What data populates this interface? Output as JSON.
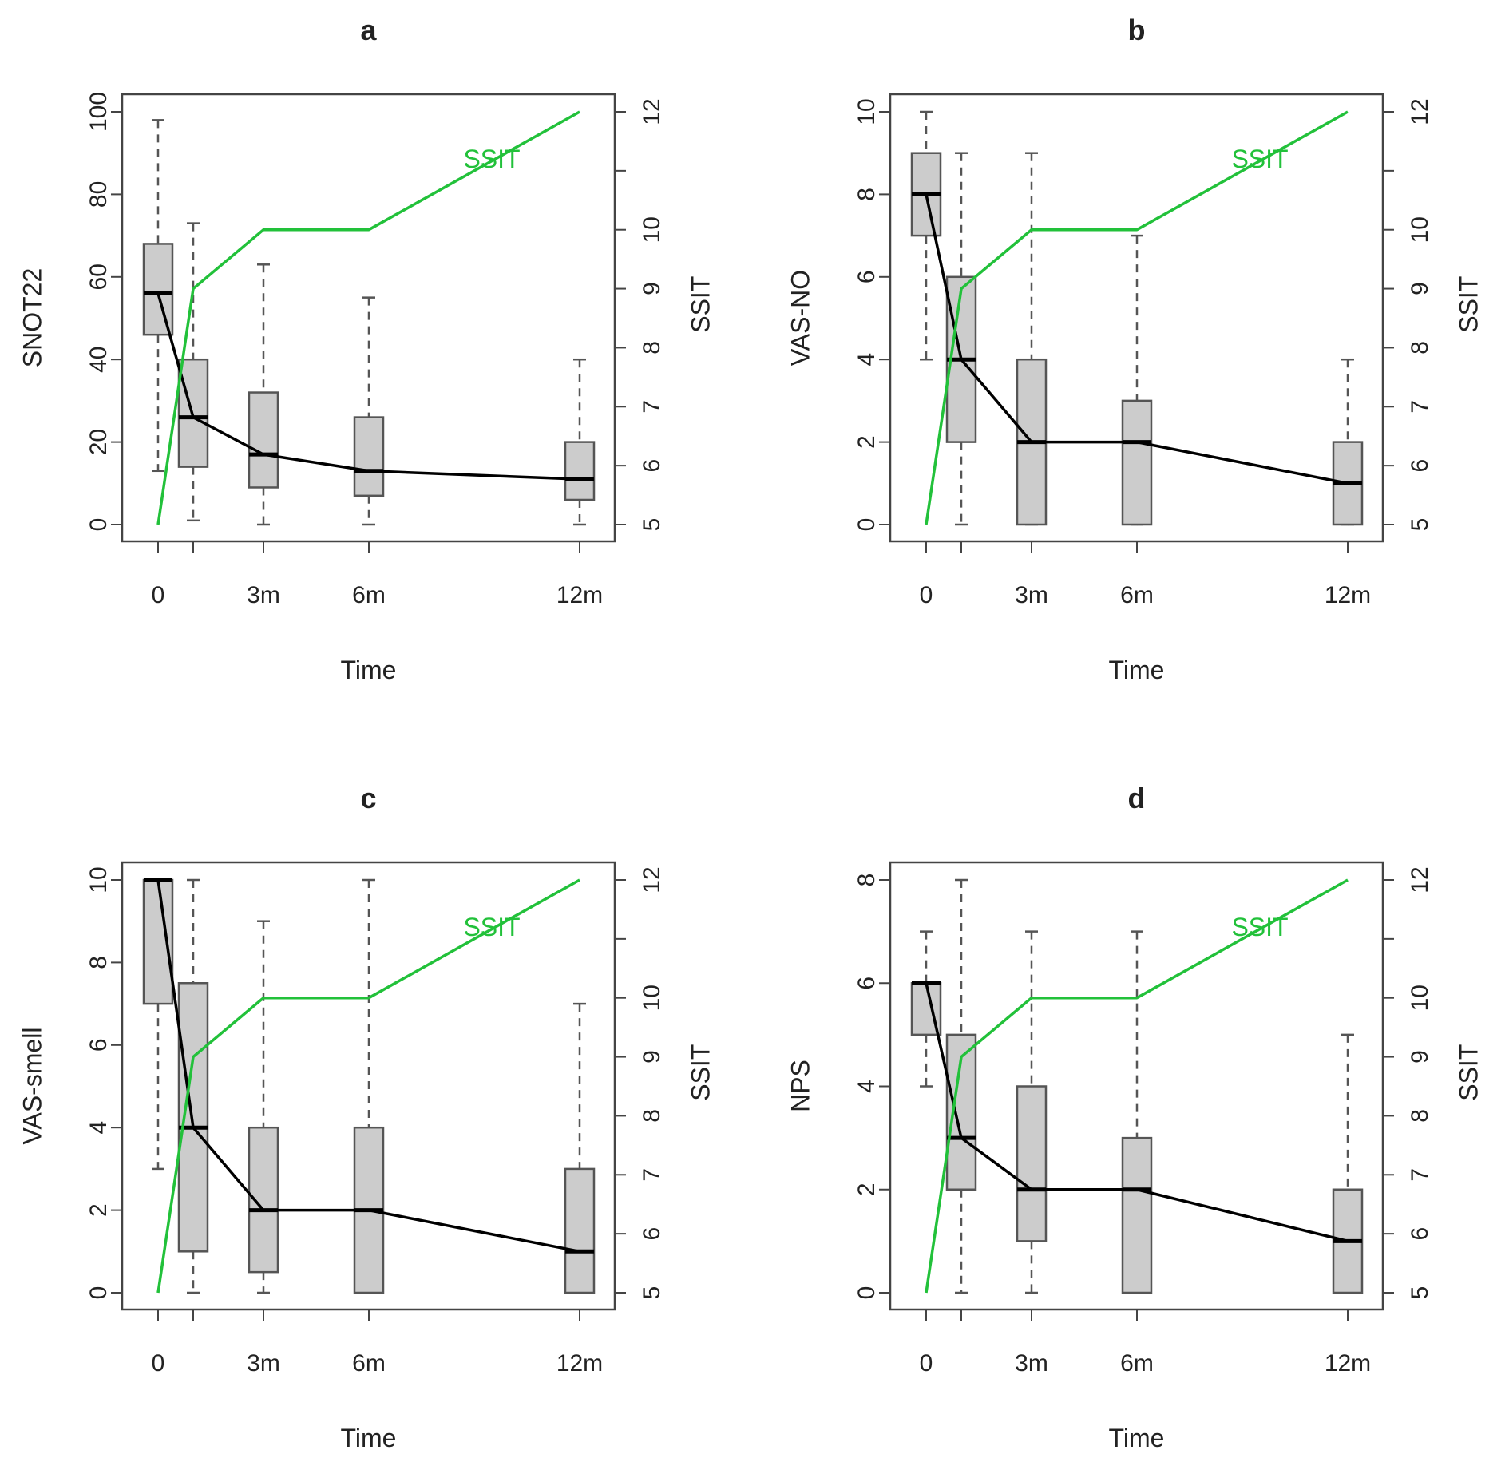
{
  "figure": {
    "colors": {
      "box_fill": "#cccccc",
      "box_stroke": "#555555",
      "whisker": "#555555",
      "median_line": "#000000",
      "ssit_line": "#22c13a",
      "frame": "#444444",
      "text": "#222222"
    }
  },
  "chart_data": [
    {
      "type": "boxplot",
      "title": "a",
      "xlabel": "Time",
      "ylabel": "SNOT22",
      "y2label": "SSIT",
      "series_label": "SSIT",
      "ylim": [
        0,
        100
      ],
      "yticks": [
        0,
        20,
        40,
        60,
        80,
        100
      ],
      "y2lim": [
        5,
        12
      ],
      "y2ticks": [
        5,
        6,
        7,
        8,
        9,
        10,
        11,
        12
      ],
      "y2ticklabels": [
        "5",
        "6",
        "7",
        "8",
        "9",
        "10",
        "",
        "12"
      ],
      "x": [
        0,
        1,
        3,
        6,
        12
      ],
      "xticklabels": [
        "0",
        "",
        "3m",
        "6m",
        "12m"
      ],
      "boxes": [
        {
          "x": 0,
          "min": 13,
          "q1": 46,
          "median": 56,
          "q3": 68,
          "max": 98
        },
        {
          "x": 1,
          "min": 1,
          "q1": 14,
          "median": 26,
          "q3": 40,
          "max": 73
        },
        {
          "x": 3,
          "min": 0,
          "q1": 9,
          "median": 17,
          "q3": 32,
          "max": 63
        },
        {
          "x": 6,
          "min": 0,
          "q1": 7,
          "median": 13,
          "q3": 26,
          "max": 55
        },
        {
          "x": 12,
          "min": 0,
          "q1": 6,
          "median": 11,
          "q3": 20,
          "max": 40
        }
      ],
      "median_line": [
        56,
        26,
        17,
        13,
        11
      ],
      "ssit": [
        5,
        9,
        10,
        10,
        12
      ]
    },
    {
      "type": "boxplot",
      "title": "b",
      "xlabel": "Time",
      "ylabel": "VAS-NO",
      "y2label": "SSIT",
      "series_label": "SSIT",
      "ylim": [
        0,
        10
      ],
      "yticks": [
        0,
        2,
        4,
        6,
        8,
        10
      ],
      "y2lim": [
        5,
        12
      ],
      "y2ticks": [
        5,
        6,
        7,
        8,
        9,
        10,
        11,
        12
      ],
      "y2ticklabels": [
        "5",
        "6",
        "7",
        "8",
        "9",
        "10",
        "",
        "12"
      ],
      "x": [
        0,
        1,
        3,
        6,
        12
      ],
      "xticklabels": [
        "0",
        "",
        "3m",
        "6m",
        "12m"
      ],
      "boxes": [
        {
          "x": 0,
          "min": 4,
          "q1": 7,
          "median": 8,
          "q3": 9,
          "max": 10
        },
        {
          "x": 1,
          "min": 0,
          "q1": 2,
          "median": 4,
          "q3": 6,
          "max": 9
        },
        {
          "x": 3,
          "min": 0,
          "q1": 0,
          "median": 2,
          "q3": 4,
          "max": 9
        },
        {
          "x": 6,
          "min": 0,
          "q1": 0,
          "median": 2,
          "q3": 3,
          "max": 7
        },
        {
          "x": 12,
          "min": 0,
          "q1": 0,
          "median": 1,
          "q3": 2,
          "max": 4
        }
      ],
      "median_line": [
        8,
        4,
        2,
        2,
        1
      ],
      "ssit": [
        5,
        9,
        10,
        10,
        12
      ]
    },
    {
      "type": "boxplot",
      "title": "c",
      "xlabel": "Time",
      "ylabel": "VAS-smell",
      "y2label": "SSIT",
      "series_label": "SSIT",
      "ylim": [
        0,
        10
      ],
      "yticks": [
        0,
        2,
        4,
        6,
        8,
        10
      ],
      "y2lim": [
        5,
        12
      ],
      "y2ticks": [
        5,
        6,
        7,
        8,
        9,
        10,
        11,
        12
      ],
      "y2ticklabels": [
        "5",
        "6",
        "7",
        "8",
        "9",
        "10",
        "",
        "12"
      ],
      "x": [
        0,
        1,
        3,
        6,
        12
      ],
      "xticklabels": [
        "0",
        "",
        "3m",
        "6m",
        "12m"
      ],
      "boxes": [
        {
          "x": 0,
          "min": 3,
          "q1": 7,
          "median": 10,
          "q3": 10,
          "max": 10
        },
        {
          "x": 1,
          "min": 0,
          "q1": 1,
          "median": 4,
          "q3": 7.5,
          "max": 10
        },
        {
          "x": 3,
          "min": 0,
          "q1": 0.5,
          "median": 2,
          "q3": 4,
          "max": 9
        },
        {
          "x": 6,
          "min": 0,
          "q1": 0,
          "median": 2,
          "q3": 4,
          "max": 10
        },
        {
          "x": 12,
          "min": 0,
          "q1": 0,
          "median": 1,
          "q3": 3,
          "max": 7
        }
      ],
      "median_line": [
        10,
        4,
        2,
        2,
        1
      ],
      "ssit": [
        5,
        9,
        10,
        10,
        12
      ]
    },
    {
      "type": "boxplot",
      "title": "d",
      "xlabel": "Time",
      "ylabel": "NPS",
      "y2label": "SSIT",
      "series_label": "SSIT",
      "ylim": [
        0,
        8
      ],
      "yticks": [
        0,
        2,
        4,
        6,
        8
      ],
      "y2lim": [
        5,
        12
      ],
      "y2ticks": [
        5,
        6,
        7,
        8,
        9,
        10,
        11,
        12
      ],
      "y2ticklabels": [
        "5",
        "6",
        "7",
        "8",
        "9",
        "10",
        "",
        "12"
      ],
      "x": [
        0,
        1,
        3,
        6,
        12
      ],
      "xticklabels": [
        "0",
        "",
        "3m",
        "6m",
        "12m"
      ],
      "boxes": [
        {
          "x": 0,
          "min": 4,
          "q1": 5,
          "median": 6,
          "q3": 6,
          "max": 7
        },
        {
          "x": 1,
          "min": 0,
          "q1": 2,
          "median": 3,
          "q3": 5,
          "max": 8
        },
        {
          "x": 3,
          "min": 0,
          "q1": 1,
          "median": 2,
          "q3": 4,
          "max": 7
        },
        {
          "x": 6,
          "min": 0,
          "q1": 0,
          "median": 2,
          "q3": 3,
          "max": 7
        },
        {
          "x": 12,
          "min": 0,
          "q1": 0,
          "median": 1,
          "q3": 2,
          "max": 5
        }
      ],
      "median_line": [
        6,
        3,
        2,
        2,
        1
      ],
      "ssit": [
        5,
        9,
        10,
        10,
        12
      ]
    }
  ]
}
